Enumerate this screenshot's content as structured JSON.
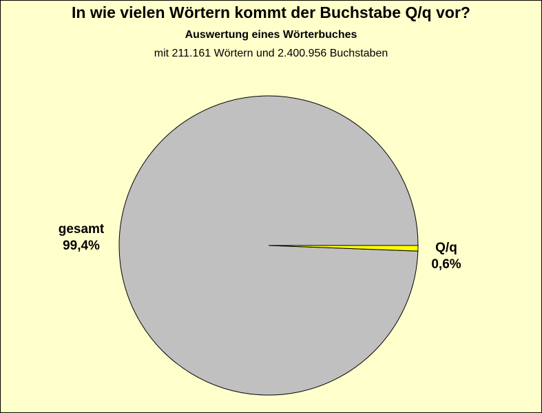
{
  "chart_data": {
    "type": "pie",
    "title": "In wie vielen Wörtern kommt der Buchstabe Q/q vor?",
    "subtitle": "Auswertung eines Wörterbuches",
    "subtitle2": "mit 211.161 Wörtern und 2.400.956 Buchstaben",
    "slices": [
      {
        "name": "gesamt",
        "value": 99.4,
        "label": "99,4%",
        "color": "#c0c0c0"
      },
      {
        "name": "Q/q",
        "value": 0.6,
        "label": "0,6%",
        "color": "#ffff00"
      }
    ],
    "legend": "none"
  }
}
